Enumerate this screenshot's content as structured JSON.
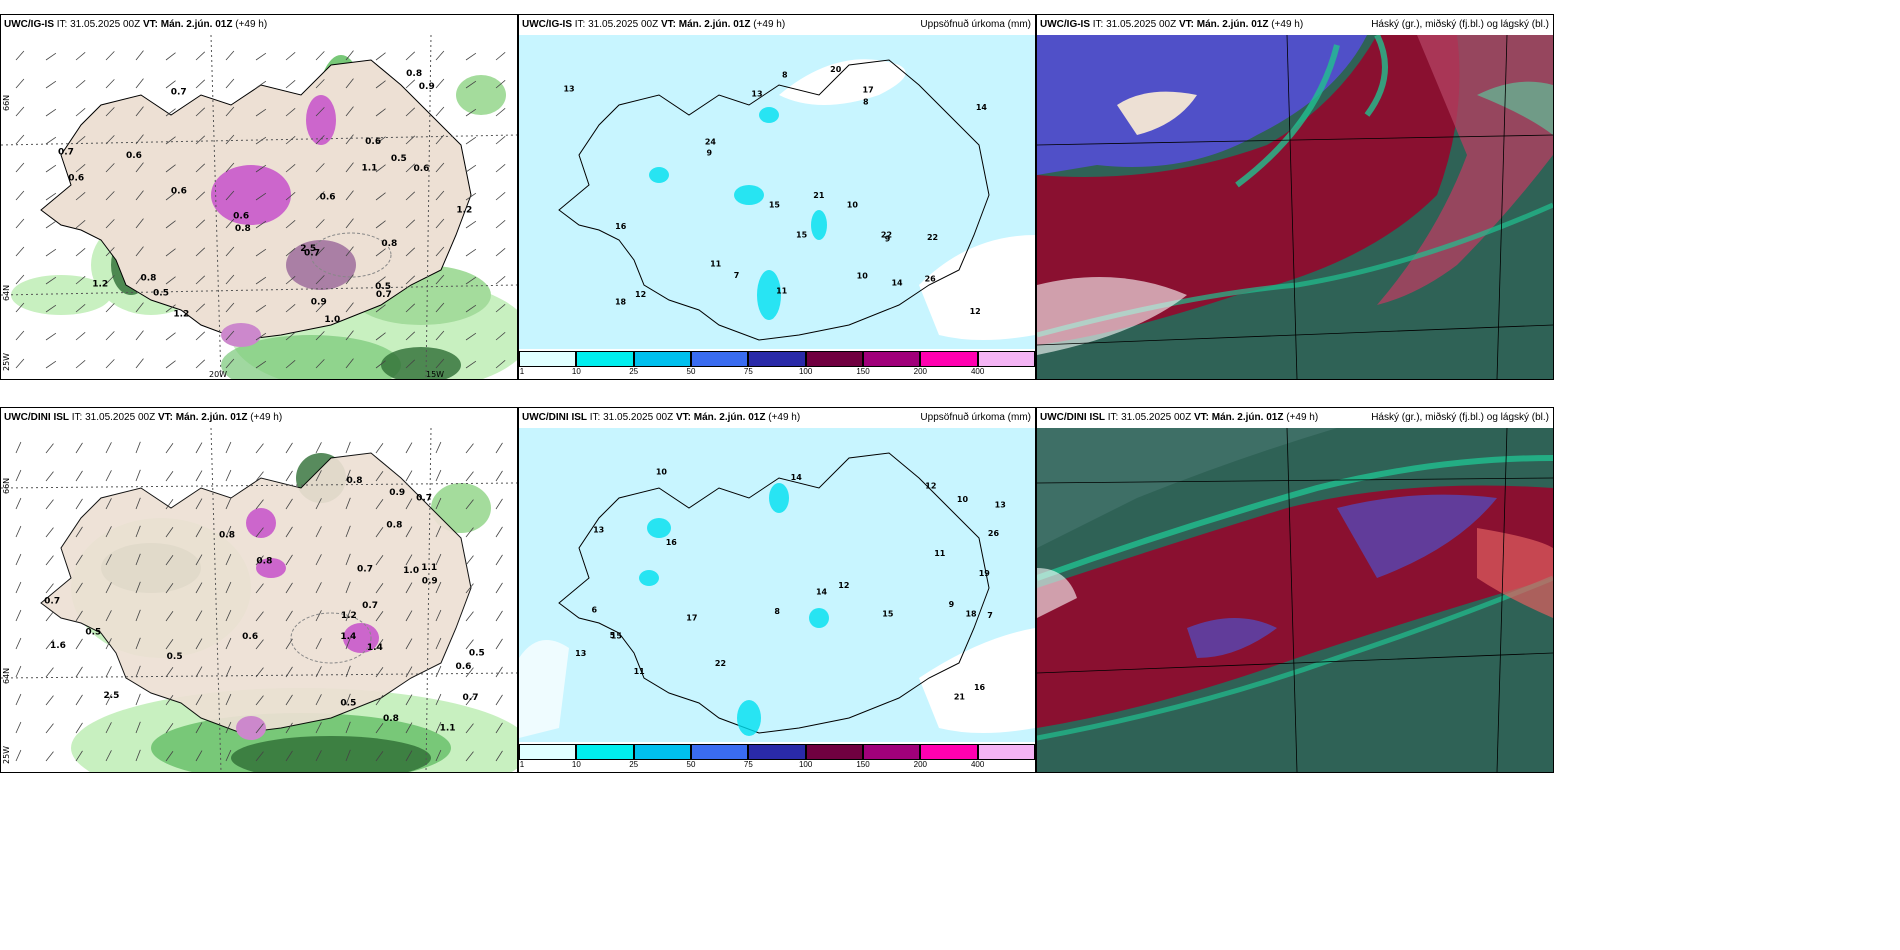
{
  "panels": [
    {
      "model": "UWC/IG-IS",
      "it_label": "IT:",
      "it": "31.05.2025 00Z",
      "vt_label": "VT:",
      "vt": "Mán. 2.jún. 01Z",
      "lead": "(+49 h)",
      "right": ""
    },
    {
      "model": "UWC/IG-IS",
      "it_label": "IT:",
      "it": "31.05.2025 00Z",
      "vt_label": "VT:",
      "vt": "Mán. 2.jún. 01Z",
      "lead": "(+49 h)",
      "right": "Uppsöfnuð úrkoma (mm)"
    },
    {
      "model": "UWC/IG-IS",
      "it_label": "IT:",
      "it": "31.05.2025 00Z",
      "vt_label": "VT:",
      "vt": "Mán. 2.jún. 01Z",
      "lead": "(+49 h)",
      "right": "Háský (gr.), miðský (fj.bl.) og lágský (bl.)"
    },
    {
      "model": "UWC/DINI ISL",
      "it_label": "IT:",
      "it": "31.05.2025 00Z",
      "vt_label": "VT:",
      "vt": "Mán. 2.jún. 01Z",
      "lead": "(+49 h)",
      "right": ""
    },
    {
      "model": "UWC/DINI ISL",
      "it_label": "IT:",
      "it": "31.05.2025 00Z",
      "vt_label": "VT:",
      "vt": "Mán. 2.jún. 01Z",
      "lead": "(+49 h)",
      "right": "Uppsöfnuð úrkoma (mm)"
    },
    {
      "model": "UWC/DINI ISL",
      "it_label": "IT:",
      "it": "31.05.2025 00Z",
      "vt_label": "VT:",
      "vt": "Mán. 2.jún. 01Z",
      "lead": "(+49 h)",
      "right": "Háský (gr.), miðský (fj.bl.) og lágský (bl.)"
    }
  ],
  "grid_labels": {
    "lat66": "66N",
    "lat64": "64N",
    "lon25": "25W",
    "lon20": "20W",
    "lon15": "15W"
  },
  "colorbar": {
    "ticks": [
      "1",
      "10",
      "25",
      "50",
      "75",
      "100",
      "150",
      "200",
      "400"
    ],
    "colors": [
      "#e0ffff",
      "#00eeee",
      "#00c0ee",
      "#3a6cf0",
      "#2a2aa8",
      "#700040",
      "#a0007a",
      "#ff00b0",
      "#f4b4f4"
    ]
  },
  "colors": {
    "land": "#ede0d4",
    "precip_light": "#c8f5ff",
    "precip_mid": "#00e0f0",
    "green_light": "#c8f0c0",
    "green_mid": "#78c878",
    "green_dark": "#2e6e34",
    "purple": "#cc66cc",
    "cloud_red": "#8a1030",
    "cloud_blue": "#5050c8",
    "cloud_teal": "#2f6256",
    "cloud_green": "#20c090"
  },
  "precip_values_top": [
    "1.0",
    "0.7",
    "0.8",
    "0.6",
    "0.5",
    "0.9",
    "1.2",
    "0.6",
    "0.8",
    "0.5",
    "1.2",
    "0.7",
    "0.6",
    "2.5",
    "1.1",
    "0.8",
    "0.6",
    "0.9",
    "0.8",
    "0.6",
    "0.5",
    "0.7",
    "1.2",
    "0.7",
    "0.6",
    "0.6"
  ],
  "precip_values_bottom": [
    "1.4",
    "0.5",
    "1.0",
    "0.6",
    "0.5",
    "0.8",
    "1.1",
    "0.8",
    "0.7",
    "0.8",
    "0.7",
    "1.2",
    "1.6",
    "1.4",
    "0.5",
    "1.1",
    "0.7",
    "0.5",
    "0.9",
    "0.8",
    "0.6",
    "0.7",
    "0.7",
    "0.8",
    "0.9",
    "2.5"
  ],
  "accum_values_top": [
    "18",
    "22",
    "21",
    "15",
    "13",
    "20",
    "26",
    "17",
    "14",
    "11",
    "12",
    "9",
    "7",
    "8",
    "10",
    "24",
    "22",
    "16",
    "15",
    "14",
    "13",
    "12",
    "11",
    "10",
    "9",
    "8"
  ],
  "accum_values_bottom": [
    "16",
    "15",
    "13",
    "22",
    "18",
    "19",
    "21",
    "17",
    "11",
    "10",
    "14",
    "13",
    "12",
    "26",
    "9",
    "8",
    "7",
    "6",
    "5",
    "11",
    "10",
    "12",
    "16",
    "15",
    "13",
    "14"
  ]
}
